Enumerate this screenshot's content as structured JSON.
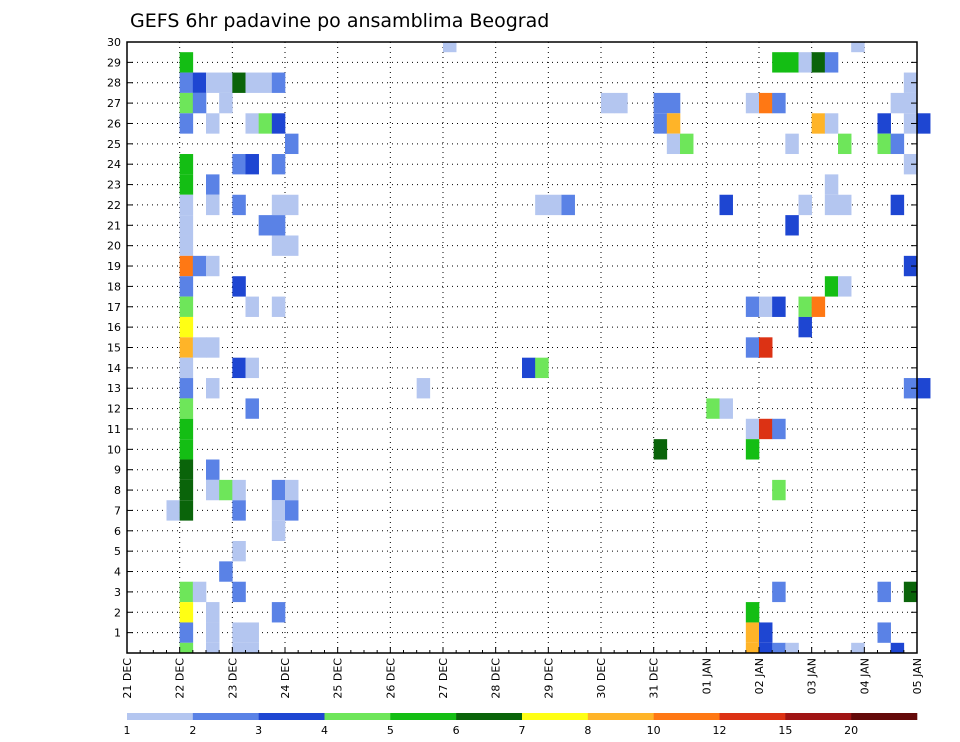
{
  "chart_data": {
    "type": "heatmap",
    "title": "GEFS 6hr padavine po ansamblima Beograd",
    "xlabel": "",
    "ylabel": "",
    "x_range": [
      "21 DEC 00z",
      "05 JAN 00z"
    ],
    "x_step_hours": 6,
    "y_range": [
      0,
      30
    ],
    "grid": true,
    "x_ticks": [
      "21 DEC",
      "22 DEC",
      "23 DEC",
      "24 DEC",
      "25 DEC",
      "26 DEC",
      "27 DEC",
      "28 DEC",
      "29 DEC",
      "30 DEC",
      "31 DEC",
      "01 JAN",
      "02 JAN",
      "03 JAN",
      "04 JAN",
      "05 JAN"
    ],
    "y_ticks": [
      "1",
      "2",
      "3",
      "4",
      "5",
      "6",
      "7",
      "8",
      "9",
      "10",
      "11",
      "12",
      "13",
      "14",
      "15",
      "16",
      "17",
      "18",
      "19",
      "20",
      "21",
      "22",
      "23",
      "24",
      "25",
      "26",
      "27",
      "28",
      "29",
      "30"
    ],
    "legend": {
      "placement": "bottom",
      "labels": [
        "1",
        "2",
        "3",
        "4",
        "5",
        "6",
        "7",
        "8",
        "10",
        "12",
        "15",
        "20"
      ],
      "colors": [
        "#b4c6f0",
        "#5a82e6",
        "#1e46d2",
        "#6ee65a",
        "#14be14",
        "#0a640a",
        "#ffff14",
        "#ffb428",
        "#ff7814",
        "#dc3214",
        "#a01414",
        "#640a0a"
      ]
    },
    "cells": [
      {
        "t": "22 DEC 00z",
        "m": 29,
        "v": 5
      },
      {
        "t": "22 DEC 00z",
        "m": 28,
        "v": 2
      },
      {
        "t": "22 DEC 06z",
        "m": 28,
        "v": 3
      },
      {
        "t": "22 DEC 12z",
        "m": 28,
        "v": 1
      },
      {
        "t": "22 DEC 18z",
        "m": 28,
        "v": 1
      },
      {
        "t": "23 DEC 00z",
        "m": 28,
        "v": 6
      },
      {
        "t": "23 DEC 06z",
        "m": 28,
        "v": 1
      },
      {
        "t": "23 DEC 12z",
        "m": 28,
        "v": 1
      },
      {
        "t": "23 DEC 18z",
        "m": 28,
        "v": 2
      },
      {
        "t": "22 DEC 00z",
        "m": 27,
        "v": 4
      },
      {
        "t": "22 DEC 06z",
        "m": 27,
        "v": 2
      },
      {
        "t": "22 DEC 18z",
        "m": 27,
        "v": 1
      },
      {
        "t": "22 DEC 00z",
        "m": 26,
        "v": 2
      },
      {
        "t": "22 DEC 12z",
        "m": 26,
        "v": 1
      },
      {
        "t": "23 DEC 06z",
        "m": 26,
        "v": 1
      },
      {
        "t": "23 DEC 12z",
        "m": 26,
        "v": 4
      },
      {
        "t": "23 DEC 18z",
        "m": 26,
        "v": 3
      },
      {
        "t": "24 DEC 00z",
        "m": 25,
        "v": 2
      },
      {
        "t": "22 DEC 00z",
        "m": 24,
        "v": 5
      },
      {
        "t": "23 DEC 00z",
        "m": 24,
        "v": 2
      },
      {
        "t": "23 DEC 06z",
        "m": 24,
        "v": 3
      },
      {
        "t": "23 DEC 18z",
        "m": 24,
        "v": 2
      },
      {
        "t": "22 DEC 00z",
        "m": 23,
        "v": 5
      },
      {
        "t": "22 DEC 12z",
        "m": 23,
        "v": 2
      },
      {
        "t": "22 DEC 00z",
        "m": 22,
        "v": 1
      },
      {
        "t": "22 DEC 12z",
        "m": 22,
        "v": 1
      },
      {
        "t": "23 DEC 00z",
        "m": 22,
        "v": 2
      },
      {
        "t": "23 DEC 18z",
        "m": 22,
        "v": 1
      },
      {
        "t": "24 DEC 00z",
        "m": 22,
        "v": 1
      },
      {
        "t": "22 DEC 00z",
        "m": 21,
        "v": 1
      },
      {
        "t": "23 DEC 12z",
        "m": 21,
        "v": 2
      },
      {
        "t": "23 DEC 18z",
        "m": 21,
        "v": 2
      },
      {
        "t": "22 DEC 00z",
        "m": 20,
        "v": 1
      },
      {
        "t": "23 DEC 18z",
        "m": 20,
        "v": 1
      },
      {
        "t": "24 DEC 00z",
        "m": 20,
        "v": 1
      },
      {
        "t": "22 DEC 00z",
        "m": 19,
        "v": 11
      },
      {
        "t": "22 DEC 06z",
        "m": 19,
        "v": 2
      },
      {
        "t": "22 DEC 12z",
        "m": 19,
        "v": 1
      },
      {
        "t": "22 DEC 00z",
        "m": 18,
        "v": 2
      },
      {
        "t": "23 DEC 00z",
        "m": 18,
        "v": 3
      },
      {
        "t": "22 DEC 00z",
        "m": 17,
        "v": 4
      },
      {
        "t": "23 DEC 06z",
        "m": 17,
        "v": 1
      },
      {
        "t": "23 DEC 18z",
        "m": 17,
        "v": 1
      },
      {
        "t": "22 DEC 00z",
        "m": 16,
        "v": 7
      },
      {
        "t": "22 DEC 00z",
        "m": 15,
        "v": 9
      },
      {
        "t": "22 DEC 06z",
        "m": 15,
        "v": 1
      },
      {
        "t": "22 DEC 12z",
        "m": 15,
        "v": 1
      },
      {
        "t": "22 DEC 00z",
        "m": 14,
        "v": 1
      },
      {
        "t": "23 DEC 00z",
        "m": 14,
        "v": 3
      },
      {
        "t": "23 DEC 06z",
        "m": 14,
        "v": 1
      },
      {
        "t": "22 DEC 00z",
        "m": 13,
        "v": 2
      },
      {
        "t": "22 DEC 12z",
        "m": 13,
        "v": 1
      },
      {
        "t": "22 DEC 00z",
        "m": 12,
        "v": 4
      },
      {
        "t": "23 DEC 06z",
        "m": 12,
        "v": 2
      },
      {
        "t": "22 DEC 00z",
        "m": 11,
        "v": 5
      },
      {
        "t": "22 DEC 00z",
        "m": 10,
        "v": 5
      },
      {
        "t": "22 DEC 00z",
        "m": 9,
        "v": 6
      },
      {
        "t": "22 DEC 12z",
        "m": 9,
        "v": 2
      },
      {
        "t": "22 DEC 00z",
        "m": 8,
        "v": 6
      },
      {
        "t": "22 DEC 12z",
        "m": 8,
        "v": 1
      },
      {
        "t": "22 DEC 18z",
        "m": 8,
        "v": 4
      },
      {
        "t": "23 DEC 00z",
        "m": 8,
        "v": 1
      },
      {
        "t": "23 DEC 18z",
        "m": 8,
        "v": 2
      },
      {
        "t": "24 DEC 00z",
        "m": 8,
        "v": 1
      },
      {
        "t": "21 DEC 18z",
        "m": 7,
        "v": 1
      },
      {
        "t": "22 DEC 00z",
        "m": 7,
        "v": 6
      },
      {
        "t": "23 DEC 00z",
        "m": 7,
        "v": 2
      },
      {
        "t": "23 DEC 18z",
        "m": 7,
        "v": 1
      },
      {
        "t": "24 DEC 00z",
        "m": 7,
        "v": 2
      },
      {
        "t": "23 DEC 18z",
        "m": 6,
        "v": 1
      },
      {
        "t": "23 DEC 00z",
        "m": 5,
        "v": 1
      },
      {
        "t": "22 DEC 18z",
        "m": 4,
        "v": 2
      },
      {
        "t": "22 DEC 00z",
        "m": 3,
        "v": 4
      },
      {
        "t": "22 DEC 06z",
        "m": 3,
        "v": 1
      },
      {
        "t": "23 DEC 00z",
        "m": 3,
        "v": 2
      },
      {
        "t": "22 DEC 00z",
        "m": 2,
        "v": 7
      },
      {
        "t": "22 DEC 12z",
        "m": 2,
        "v": 1
      },
      {
        "t": "23 DEC 18z",
        "m": 2,
        "v": 2
      },
      {
        "t": "22 DEC 00z",
        "m": 1,
        "v": 2
      },
      {
        "t": "22 DEC 12z",
        "m": 1,
        "v": 1
      },
      {
        "t": "23 DEC 00z",
        "m": 1,
        "v": 1
      },
      {
        "t": "23 DEC 06z",
        "m": 1,
        "v": 1
      },
      {
        "t": "22 DEC 00z",
        "m": 0,
        "v": 4
      },
      {
        "t": "22 DEC 12z",
        "m": 0,
        "v": 1
      },
      {
        "t": "23 DEC 00z",
        "m": 0,
        "v": 1
      },
      {
        "t": "23 DEC 06z",
        "m": 0,
        "v": 1
      },
      {
        "t": "27 DEC 00z",
        "m": 30,
        "v": 1
      },
      {
        "t": "26 DEC 12z",
        "m": 13,
        "v": 1
      },
      {
        "t": "28 DEC 12z",
        "m": 14,
        "v": 3
      },
      {
        "t": "28 DEC 18z",
        "m": 14,
        "v": 4
      },
      {
        "t": "28 DEC 18z",
        "m": 22,
        "v": 1
      },
      {
        "t": "29 DEC 00z",
        "m": 22,
        "v": 1
      },
      {
        "t": "29 DEC 06z",
        "m": 22,
        "v": 2
      },
      {
        "t": "30 DEC 00z",
        "m": 27,
        "v": 1
      },
      {
        "t": "30 DEC 06z",
        "m": 27,
        "v": 1
      },
      {
        "t": "31 DEC 00z",
        "m": 27,
        "v": 2
      },
      {
        "t": "31 DEC 06z",
        "m": 27,
        "v": 2
      },
      {
        "t": "31 DEC 00z",
        "m": 26,
        "v": 2
      },
      {
        "t": "31 DEC 06z",
        "m": 26,
        "v": 9
      },
      {
        "t": "31 DEC 06z",
        "m": 25,
        "v": 1
      },
      {
        "t": "31 DEC 12z",
        "m": 25,
        "v": 4
      },
      {
        "t": "31 DEC 00z",
        "m": 10,
        "v": 6
      },
      {
        "t": "01 JAN 06z",
        "m": 22,
        "v": 3
      },
      {
        "t": "01 JAN 00z",
        "m": 12,
        "v": 4
      },
      {
        "t": "01 JAN 06z",
        "m": 12,
        "v": 1
      },
      {
        "t": "01 JAN 18z",
        "m": 27,
        "v": 1
      },
      {
        "t": "02 JAN 00z",
        "m": 27,
        "v": 10
      },
      {
        "t": "02 JAN 06z",
        "m": 27,
        "v": 2
      },
      {
        "t": "02 JAN 06z",
        "m": 29,
        "v": 5
      },
      {
        "t": "02 JAN 12z",
        "m": 29,
        "v": 5
      },
      {
        "t": "02 JAN 18z",
        "m": 29,
        "v": 1
      },
      {
        "t": "03 JAN 00z",
        "m": 29,
        "v": 6
      },
      {
        "t": "03 JAN 06z",
        "m": 29,
        "v": 2
      },
      {
        "t": "03 JAN 00z",
        "m": 26,
        "v": 9
      },
      {
        "t": "03 JAN 06z",
        "m": 26,
        "v": 1
      },
      {
        "t": "02 JAN 12z",
        "m": 25,
        "v": 1
      },
      {
        "t": "03 JAN 12z",
        "m": 25,
        "v": 4
      },
      {
        "t": "03 JAN 06z",
        "m": 23,
        "v": 1
      },
      {
        "t": "02 JAN 18z",
        "m": 22,
        "v": 1
      },
      {
        "t": "03 JAN 06z",
        "m": 22,
        "v": 1
      },
      {
        "t": "03 JAN 12z",
        "m": 22,
        "v": 1
      },
      {
        "t": "02 JAN 12z",
        "m": 21,
        "v": 3
      },
      {
        "t": "03 JAN 06z",
        "m": 18,
        "v": 5
      },
      {
        "t": "03 JAN 12z",
        "m": 18,
        "v": 1
      },
      {
        "t": "01 JAN 18z",
        "m": 17,
        "v": 2
      },
      {
        "t": "02 JAN 00z",
        "m": 17,
        "v": 1
      },
      {
        "t": "02 JAN 06z",
        "m": 17,
        "v": 3
      },
      {
        "t": "02 JAN 18z",
        "m": 17,
        "v": 4
      },
      {
        "t": "03 JAN 00z",
        "m": 17,
        "v": 10
      },
      {
        "t": "02 JAN 18z",
        "m": 16,
        "v": 3
      },
      {
        "t": "01 JAN 18z",
        "m": 15,
        "v": 2
      },
      {
        "t": "02 JAN 00z",
        "m": 15,
        "v": 12
      },
      {
        "t": "01 JAN 18z",
        "m": 11,
        "v": 1
      },
      {
        "t": "02 JAN 00z",
        "m": 11,
        "v": 14
      },
      {
        "t": "02 JAN 06z",
        "m": 11,
        "v": 2
      },
      {
        "t": "01 JAN 18z",
        "m": 10,
        "v": 5
      },
      {
        "t": "02 JAN 06z",
        "m": 8,
        "v": 4
      },
      {
        "t": "02 JAN 06z",
        "m": 3,
        "v": 2
      },
      {
        "t": "01 JAN 18z",
        "m": 2,
        "v": 5
      },
      {
        "t": "01 JAN 18z",
        "m": 1,
        "v": 8
      },
      {
        "t": "02 JAN 00z",
        "m": 1,
        "v": 3
      },
      {
        "t": "01 JAN 18z",
        "m": 0,
        "v": 9
      },
      {
        "t": "02 JAN 00z",
        "m": 0,
        "v": 3
      },
      {
        "t": "02 JAN 06z",
        "m": 0,
        "v": 2
      },
      {
        "t": "02 JAN 12z",
        "m": 0,
        "v": 1
      },
      {
        "t": "03 JAN 18z",
        "m": 30,
        "v": 1
      },
      {
        "t": "04 JAN 18z",
        "m": 28,
        "v": 1
      },
      {
        "t": "04 JAN 12z",
        "m": 27,
        "v": 1
      },
      {
        "t": "04 JAN 18z",
        "m": 27,
        "v": 1
      },
      {
        "t": "04 JAN 06z",
        "m": 26,
        "v": 3
      },
      {
        "t": "04 JAN 18z",
        "m": 26,
        "v": 1
      },
      {
        "t": "05 JAN 00z",
        "m": 26,
        "v": 3
      },
      {
        "t": "04 JAN 06z",
        "m": 25,
        "v": 4
      },
      {
        "t": "04 JAN 12z",
        "m": 25,
        "v": 2
      },
      {
        "t": "04 JAN 18z",
        "m": 24,
        "v": 1
      },
      {
        "t": "04 JAN 12z",
        "m": 22,
        "v": 3
      },
      {
        "t": "04 JAN 18z",
        "m": 19,
        "v": 3
      },
      {
        "t": "04 JAN 18z",
        "m": 13,
        "v": 2
      },
      {
        "t": "05 JAN 00z",
        "m": 13,
        "v": 3
      },
      {
        "t": "04 JAN 06z",
        "m": 3,
        "v": 2
      },
      {
        "t": "04 JAN 18z",
        "m": 3,
        "v": 6
      },
      {
        "t": "04 JAN 06z",
        "m": 1,
        "v": 2
      },
      {
        "t": "03 JAN 18z",
        "m": 0,
        "v": 1
      },
      {
        "t": "04 JAN 12z",
        "m": 0,
        "v": 3
      }
    ]
  }
}
